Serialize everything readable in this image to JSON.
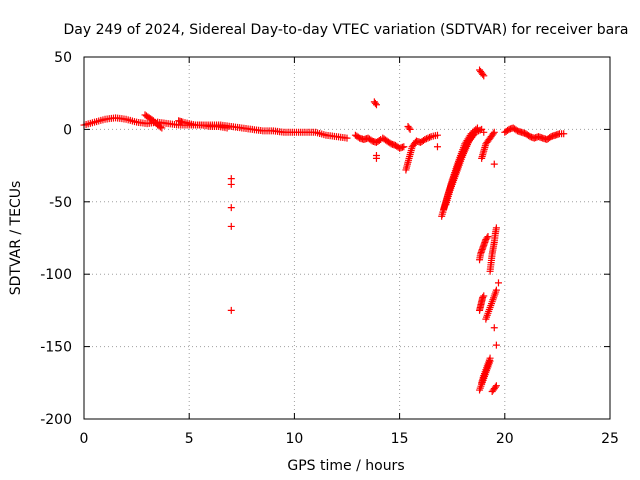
{
  "chart_data": {
    "type": "scatter",
    "title": "Day 249 of 2024, Sidereal Day-to-day VTEC variation (SDTVAR) for receiver bara",
    "xlabel": "GPS time / hours",
    "ylabel": "SDTVAR / TECUs",
    "xlim": [
      0,
      25
    ],
    "ylim": [
      -200,
      50
    ],
    "xticks": [
      "0",
      "5",
      "10",
      "15",
      "20",
      "25"
    ],
    "yticks": [
      "50",
      "0",
      "-50",
      "-100",
      "-150",
      "-200"
    ],
    "grid": true,
    "marker": "plus",
    "series": [
      {
        "name": "SDTVAR",
        "color": "#ff0000",
        "segments": [
          {
            "x": [
              0.0,
              0.5,
              1.0,
              1.5,
              2.0,
              2.5,
              3.0,
              3.5,
              4.0,
              4.5,
              5.0,
              5.5,
              6.0,
              6.5,
              7.0,
              7.5,
              8.0,
              8.5,
              9.0,
              9.5,
              10.0,
              10.5,
              11.0,
              11.5,
              12.0,
              12.5
            ],
            "y": [
              3,
              5,
              7,
              8,
              7,
              5,
              4,
              5,
              4,
              3,
              3,
              3,
              3,
              3,
              2,
              1,
              0,
              -1,
              -1,
              -2,
              -2,
              -2,
              -2,
              -4,
              -5,
              -6
            ]
          },
          {
            "x": [
              2.9,
              3.1,
              3.3,
              3.5,
              3.7
            ],
            "y": [
              10,
              8,
              6,
              3,
              1
            ]
          },
          {
            "x": [
              4.5,
              4.7,
              5.0,
              5.3,
              5.6,
              6.0,
              6.4,
              6.8
            ],
            "y": [
              6,
              5,
              4,
              3,
              3,
              2,
              2,
              1
            ]
          },
          {
            "x": [
              12.9,
              13.1,
              13.3,
              13.5,
              13.7,
              13.9,
              14.1
            ],
            "y": [
              -4,
              -6,
              -7,
              -6,
              -8,
              -9,
              -7
            ]
          },
          {
            "x": [
              14.2,
              14.4,
              14.6,
              14.8,
              15.0,
              15.2
            ],
            "y": [
              -6,
              -8,
              -10,
              -11,
              -13,
              -12
            ]
          },
          {
            "x": [
              15.3,
              15.45,
              15.6,
              15.8,
              16.0,
              16.2,
              16.5,
              16.8
            ],
            "y": [
              -28,
              -20,
              -12,
              -8,
              -9,
              -7,
              -5,
              -4
            ]
          },
          {
            "x": [
              15.4,
              15.5
            ],
            "y": [
              2,
              0
            ]
          },
          {
            "x": [
              17.0,
              17.2,
              17.5,
              17.8,
              18.1,
              18.4,
              18.7
            ],
            "y": [
              -60,
              -50,
              -35,
              -22,
              -10,
              -3,
              1
            ]
          },
          {
            "x": [
              17.1,
              17.3,
              17.6,
              17.9,
              18.2,
              18.5
            ],
            "y": [
              -55,
              -45,
              -32,
              -20,
              -10,
              -4
            ]
          },
          {
            "x": [
              17.2,
              17.4,
              17.7,
              18.0,
              18.3,
              18.6,
              18.9
            ],
            "y": [
              -52,
              -42,
              -30,
              -18,
              -8,
              -2,
              0
            ]
          },
          {
            "x": [
              18.9,
              19.0,
              19.1,
              19.2,
              19.3,
              19.4,
              19.5
            ],
            "y": [
              -20,
              -15,
              -10,
              -8,
              -6,
              -4,
              -2
            ]
          },
          {
            "x": [
              20.0,
              20.2,
              20.4,
              20.6,
              20.8,
              21.0,
              21.2,
              21.4,
              21.6,
              21.8,
              22.0,
              22.2,
              22.4,
              22.6,
              22.8
            ],
            "y": [
              -2,
              0,
              1,
              -1,
              -2,
              -3,
              -5,
              -6,
              -5,
              -6,
              -7,
              -5,
              -4,
              -3,
              -3
            ]
          },
          {
            "x": [
              18.8,
              18.85,
              18.9,
              18.95,
              19.0
            ],
            "y": [
              41,
              40,
              39,
              38,
              37
            ]
          },
          {
            "x": [
              13.8,
              13.85,
              13.9
            ],
            "y": [
              19,
              18,
              17
            ]
          },
          {
            "x": [
              18.8,
              18.85,
              18.9,
              18.95,
              19.0,
              19.05,
              19.1,
              19.15,
              19.2
            ],
            "y": [
              -90,
              -86,
              -84,
              -82,
              -80,
              -78,
              -76,
              -75,
              -74
            ]
          },
          {
            "x": [
              19.3,
              19.35,
              19.4,
              19.45,
              19.5,
              19.55,
              19.6
            ],
            "y": [
              -98,
              -92,
              -86,
              -82,
              -78,
              -72,
              -68
            ]
          },
          {
            "x": [
              18.8,
              18.85,
              18.9,
              18.95,
              19.0
            ],
            "y": [
              -125,
              -122,
              -119,
              -116,
              -115
            ]
          },
          {
            "x": [
              19.1,
              19.2,
              19.3,
              19.4,
              19.5,
              19.6
            ],
            "y": [
              -131,
              -127,
              -123,
              -119,
              -115,
              -111
            ]
          },
          {
            "x": [
              18.8,
              18.9,
              19.0,
              19.1,
              19.2,
              19.3
            ],
            "y": [
              -180,
              -176,
              -172,
              -168,
              -164,
              -160
            ]
          },
          {
            "x": [
              18.9,
              19.0,
              19.1,
              19.2,
              19.3
            ],
            "y": [
              -175,
              -170,
              -166,
              -162,
              -158
            ]
          },
          {
            "x": [
              19.4,
              19.45,
              19.5,
              19.55,
              19.6
            ],
            "y": [
              -181,
              -180,
              -179,
              -178,
              -177
            ]
          }
        ],
        "points": {
          "x": [
            7.0,
            7.0,
            7.0,
            7.0,
            7.0,
            13.9,
            13.9,
            16.8,
            19.0,
            19.5,
            19.6,
            19.5,
            19.7
          ],
          "y": [
            -34,
            -38,
            -54,
            -67,
            -125,
            -20,
            -18,
            -12,
            -2,
            -24,
            -149,
            -137,
            -106
          ]
        }
      }
    ]
  }
}
